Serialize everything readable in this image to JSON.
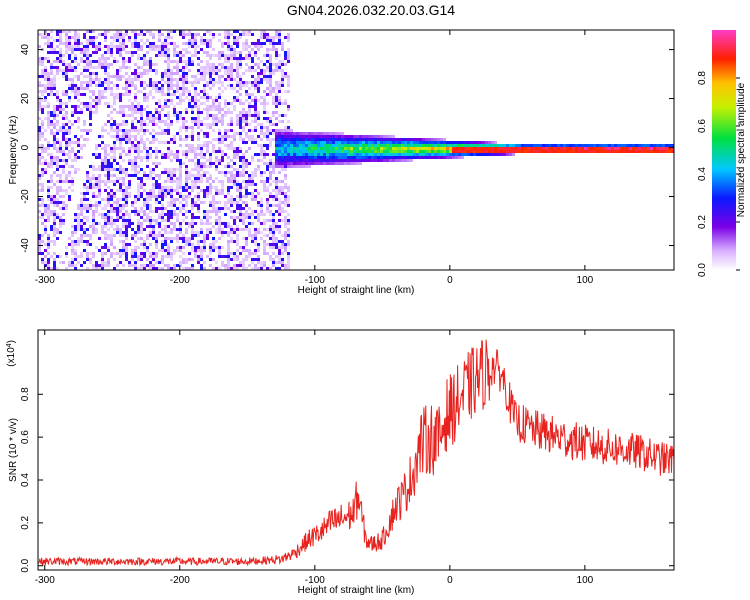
{
  "title": "GN04.2026.032.20.03.G14",
  "chart_data": [
    {
      "type": "heatmap",
      "xlabel": "Height of straight line (km)",
      "ylabel": "Frequency (Hz)",
      "xlim": [
        -305,
        166
      ],
      "ylim": [
        -50,
        48
      ],
      "xticks": [
        -300,
        -200,
        -100,
        0,
        100
      ],
      "yticks": [
        -40,
        -20,
        0,
        20,
        40
      ],
      "colorbar": {
        "label": "Normalized spectral amplitude",
        "range": [
          0,
          1
        ],
        "ticks": [
          0.0,
          0.2,
          0.4,
          0.6,
          0.8
        ],
        "colormap": "rainbow (white → violet → blue → cyan → green → yellow → red → magenta)"
      },
      "features": [
        {
          "name": "noise region",
          "x_range": [
            -305,
            -120
          ],
          "freq_range": [
            -50,
            48
          ],
          "amplitude": "low (0.1–0.3)"
        },
        {
          "name": "diagonal streak",
          "x_range": [
            -290,
            -258
          ],
          "freq_range": [
            -42,
            18
          ],
          "amplitude": "0.25"
        },
        {
          "name": "central band",
          "x_range": [
            -130,
            166
          ],
          "center_freq": 0,
          "halfwidth_hz": [
            8,
            2
          ],
          "peak_amplitude": 1.0
        }
      ]
    },
    {
      "type": "line",
      "xlabel": "Height of straight line (km)",
      "ylabel": "SNR (10 * v/v)",
      "y_multiplier": "(x10^4)",
      "xlim": [
        -305,
        166
      ],
      "ylim": [
        -0.02,
        1.1
      ],
      "xticks": [
        -300,
        -200,
        -100,
        0,
        100
      ],
      "yticks": [
        0.0,
        0.2,
        0.4,
        0.6,
        0.8
      ],
      "color": "#e8231f",
      "series": [
        {
          "x": [
            -305,
            -250,
            -200,
            -150,
            -125,
            -115,
            -105,
            -95,
            -88,
            -80,
            -72,
            -68,
            -65,
            -62,
            -58,
            -50,
            -40,
            -35,
            -28,
            -22,
            -15,
            -8,
            -3,
            0,
            8,
            15,
            25,
            32,
            38,
            42,
            48,
            60,
            80,
            100,
            120,
            140,
            155,
            166
          ],
          "y": [
            0.02,
            0.02,
            0.02,
            0.02,
            0.03,
            0.06,
            0.12,
            0.16,
            0.2,
            0.22,
            0.24,
            0.33,
            0.22,
            0.12,
            0.1,
            0.12,
            0.28,
            0.32,
            0.42,
            0.56,
            0.6,
            0.58,
            0.7,
            0.72,
            0.78,
            0.84,
            0.9,
            0.93,
            0.9,
            0.82,
            0.68,
            0.64,
            0.6,
            0.57,
            0.55,
            0.53,
            0.5,
            0.49
          ]
        }
      ]
    }
  ]
}
